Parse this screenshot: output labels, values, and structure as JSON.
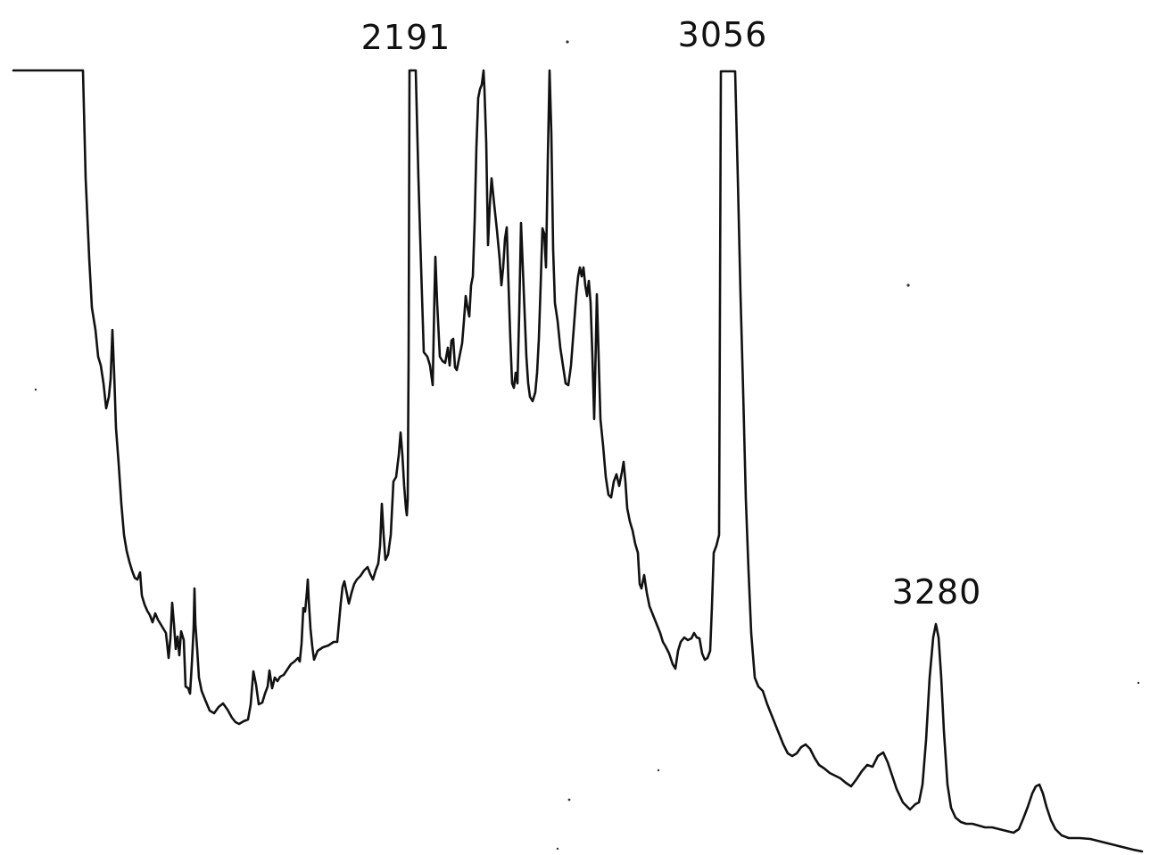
{
  "chart_data": {
    "type": "line",
    "title": "",
    "xlabel": "",
    "ylabel": "",
    "grid": false,
    "legend": "none",
    "line_color": "#111111",
    "annotations": [
      {
        "text": "2191",
        "x": 2191
      },
      {
        "text": "3056",
        "x": 3056
      },
      {
        "text": "3280",
        "x": 3280
      }
    ]
  }
}
